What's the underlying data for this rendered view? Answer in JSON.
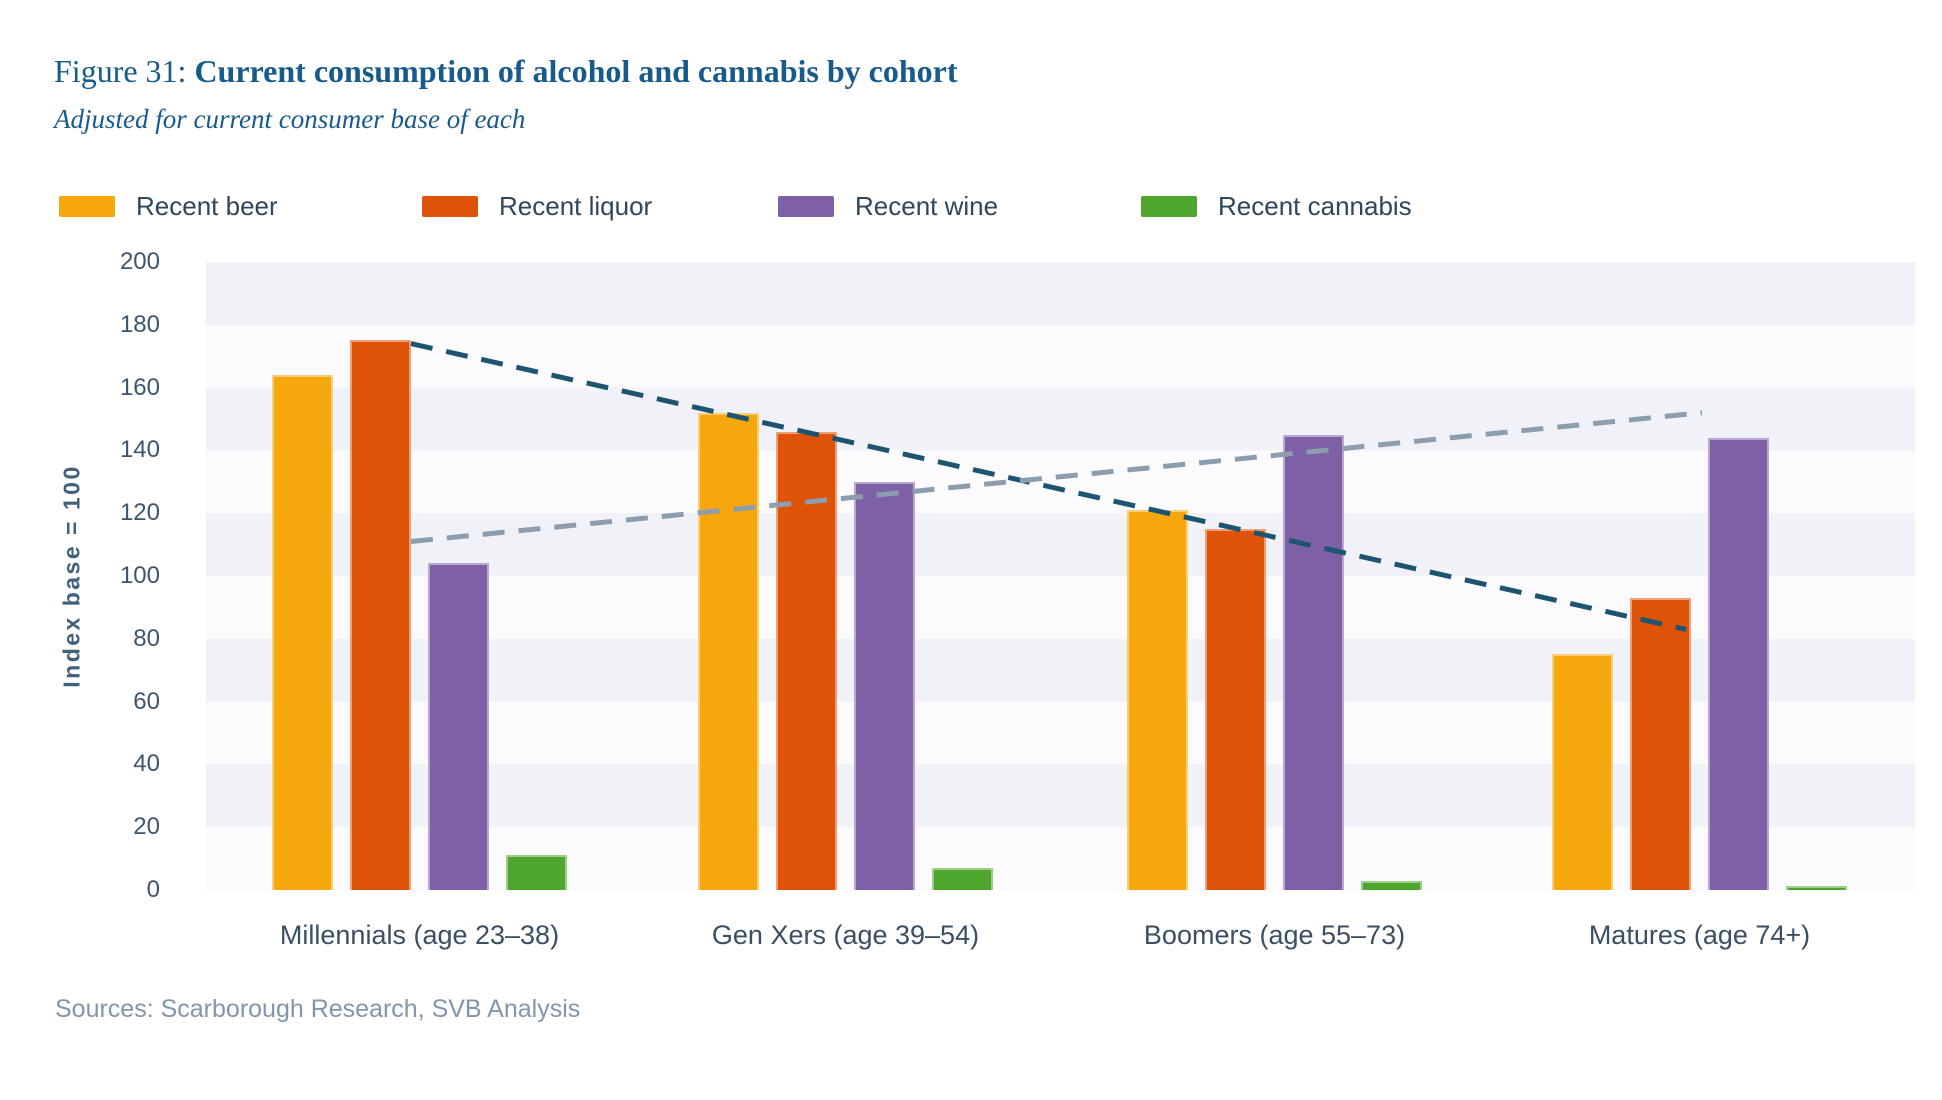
{
  "header": {
    "figure_label": "Figure 31:",
    "title": "Current consumption of alcohol and cannabis by cohort",
    "subtitle": "Adjusted for current consumer base of each"
  },
  "footer": {
    "sources": "Sources: Scarborough Research, SVB Analysis"
  },
  "colors": {
    "title_text": "#175A8C",
    "axis_text": "#3E566D",
    "category_text": "#3A4F63",
    "legend_text": "#30465B",
    "sources_text": "#8196AB",
    "band_dark": "#F1F2F8",
    "band_light": "#FBFBFD"
  },
  "chart_data": {
    "type": "bar",
    "title": "Current consumption of alcohol and cannabis by cohort",
    "subtitle": "Adjusted for current consumer base of each",
    "ylabel": "Index base = 100",
    "xlabel": "",
    "ylim": [
      0,
      200
    ],
    "yticks": [
      0,
      20,
      40,
      60,
      80,
      100,
      120,
      140,
      160,
      180,
      200
    ],
    "grid": "alternating horizontal bands every 20 units",
    "legend_position": "top",
    "categories": [
      "Millennials (age 23–38)",
      "Gen Xers (age 39–54)",
      "Boomers (age 55–73)",
      "Matures (age 74+)"
    ],
    "series": [
      {
        "name": "Recent beer",
        "color": "#F6A70B",
        "values": [
          164,
          152,
          121,
          75
        ]
      },
      {
        "name": "Recent liquor",
        "color": "#DF5309",
        "values": [
          175,
          146,
          115,
          93
        ]
      },
      {
        "name": "Recent wine",
        "color": "#7E60A6",
        "values": [
          104,
          130,
          145,
          144
        ]
      },
      {
        "name": "Recent cannabis",
        "color": "#4EA62F",
        "values": [
          11,
          7,
          3,
          1
        ]
      }
    ],
    "trend_lines": [
      {
        "name": "alcohol-declining-trend",
        "color": "#1D5570",
        "style": "dashed",
        "start_value": 174,
        "end_value": 83
      },
      {
        "name": "wine-rising-trend",
        "color": "#8C9DAE",
        "style": "dashed",
        "start_value": 111,
        "end_value": 152
      }
    ]
  }
}
